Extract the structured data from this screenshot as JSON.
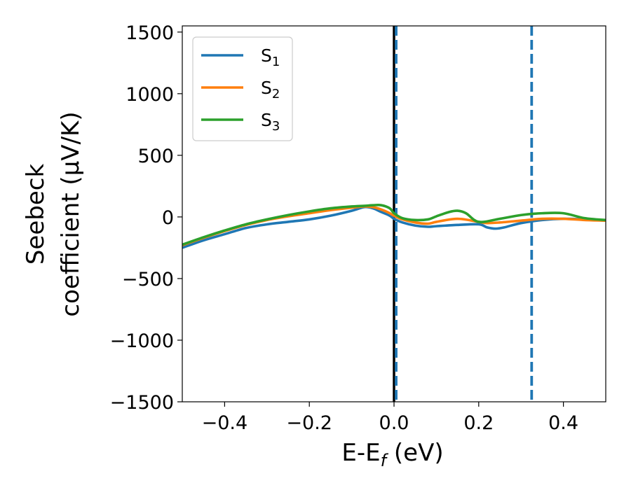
{
  "chart_data": {
    "type": "line",
    "xlabel": "E-E$_f$ (eV)",
    "xlabel_main": "E-E",
    "xlabel_sub": "f",
    "xlabel_unit": " (eV)",
    "ylabel_line1": "Seebeck",
    "ylabel_line2": "coefficient  (μV/K)",
    "xlim": [
      -0.5,
      0.5
    ],
    "ylim": [
      -1500,
      1550
    ],
    "xticks": [
      -0.4,
      -0.2,
      0.0,
      0.2,
      0.4
    ],
    "xtick_labels": [
      "−0.4",
      "−0.2",
      "0.0",
      "0.2",
      "0.4"
    ],
    "yticks": [
      -1500,
      -1000,
      -500,
      0,
      500,
      1000,
      1500
    ],
    "ytick_labels": [
      "−1500",
      "−1000",
      "−500",
      "0",
      "500",
      "1000",
      "1500"
    ],
    "legend_position": "top-left",
    "vlines": [
      {
        "x": 0.0,
        "color": "#000000",
        "style": "solid"
      },
      {
        "x": 0.005,
        "color": "#1f77b4",
        "style": "dashed"
      },
      {
        "x": 0.325,
        "color": "#1f77b4",
        "style": "dashed"
      }
    ],
    "series": [
      {
        "name": "S",
        "sub": "1",
        "color": "#1f77b4",
        "x": [
          -0.5,
          -0.45,
          -0.4,
          -0.35,
          -0.3,
          -0.25,
          -0.2,
          -0.15,
          -0.1,
          -0.07,
          -0.05,
          -0.03,
          -0.01,
          0.0,
          0.02,
          0.05,
          0.08,
          0.1,
          0.15,
          0.2,
          0.22,
          0.24,
          0.26,
          0.3,
          0.35,
          0.4,
          0.45,
          0.5
        ],
        "y": [
          -250,
          -190,
          -140,
          -90,
          -60,
          -40,
          -20,
          10,
          50,
          80,
          70,
          40,
          10,
          -15,
          -45,
          -70,
          -80,
          -75,
          -65,
          -60,
          -85,
          -95,
          -85,
          -50,
          -25,
          -15,
          -20,
          -30
        ]
      },
      {
        "name": "S",
        "sub": "2",
        "color": "#ff7f0e",
        "x": [
          -0.5,
          -0.45,
          -0.4,
          -0.35,
          -0.3,
          -0.25,
          -0.2,
          -0.15,
          -0.1,
          -0.07,
          -0.05,
          -0.03,
          -0.01,
          0.0,
          0.02,
          0.05,
          0.08,
          0.1,
          0.15,
          0.2,
          0.22,
          0.25,
          0.3,
          0.35,
          0.4,
          0.45,
          0.5
        ],
        "y": [
          -230,
          -170,
          -115,
          -65,
          -25,
          5,
          30,
          55,
          75,
          85,
          80,
          60,
          30,
          10,
          -20,
          -45,
          -55,
          -40,
          -15,
          -40,
          -50,
          -45,
          -30,
          -15,
          -15,
          -25,
          -30
        ]
      },
      {
        "name": "S",
        "sub": "3",
        "color": "#2ca02c",
        "x": [
          -0.5,
          -0.45,
          -0.4,
          -0.35,
          -0.3,
          -0.25,
          -0.2,
          -0.15,
          -0.1,
          -0.07,
          -0.05,
          -0.03,
          -0.01,
          0.0,
          0.02,
          0.05,
          0.08,
          0.1,
          0.13,
          0.15,
          0.17,
          0.2,
          0.25,
          0.3,
          0.35,
          0.4,
          0.45,
          0.5
        ],
        "y": [
          -225,
          -165,
          -110,
          -60,
          -20,
          15,
          45,
          70,
          85,
          90,
          95,
          95,
          70,
          30,
          -10,
          -25,
          -20,
          5,
          40,
          50,
          30,
          -40,
          -15,
          15,
          30,
          30,
          -10,
          -25
        ]
      }
    ]
  }
}
